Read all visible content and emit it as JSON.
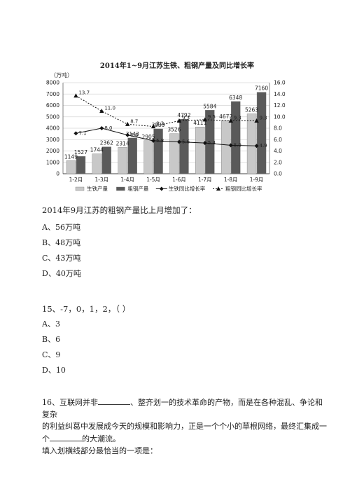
{
  "chart_data": {
    "type": "bar+line",
    "title": "2014年1~9月江苏生铁、粗钢产量及同比增长率",
    "left_axis_unit": "（万吨）",
    "categories": [
      "1-2月",
      "1-3月",
      "1-4月",
      "1-5月",
      "1-6月",
      "1-7月",
      "1-8月",
      "1-9月"
    ],
    "left_ylim": [
      0,
      8000
    ],
    "left_ticks": [
      "0",
      "1000",
      "2000",
      "3000",
      "4000",
      "5000",
      "6000",
      "7000",
      "8000"
    ],
    "right_ylim": [
      0,
      16.0
    ],
    "right_ticks": [
      "0.0",
      "2.0",
      "4.0",
      "6.0",
      "8.0",
      "10.0",
      "12.0",
      "14.0",
      "16.0"
    ],
    "series": [
      {
        "name": "生铁产量",
        "kind": "bar",
        "color": "#c8c8c8",
        "values": [
          1149,
          1744,
          2314,
          2905,
          3526,
          4111,
          4672,
          5263
        ]
      },
      {
        "name": "粗钢产量",
        "kind": "bar",
        "color": "#5a5a5a",
        "values": [
          1527,
          2362,
          3143,
          3939,
          4792,
          5584,
          6348,
          7160
        ]
      },
      {
        "name": "生铁同比增长率",
        "kind": "line",
        "axis": "right",
        "marker": "diamond",
        "values": [
          7.1,
          8.0,
          6.8,
          5.8,
          5.6,
          5.4,
          5.0,
          4.9
        ]
      },
      {
        "name": "粗钢同比增长率",
        "kind": "line",
        "axis": "right",
        "marker": "triangle",
        "dashed": true,
        "values": [
          13.7,
          11.0,
          8.7,
          8.3,
          9.3,
          9.5,
          9.3,
          9.3
        ]
      }
    ],
    "grid": true,
    "legend": "bottom"
  },
  "q14": {
    "stem": "2014年9月江苏的粗钢产量比上月增加了：",
    "options": [
      "A、56万吨",
      "B、48万吨",
      "C、43万吨",
      "D、40万吨"
    ]
  },
  "q15": {
    "stem": "15、-7，0，1，2，（    ）",
    "options": [
      "A、3",
      "B、6",
      "C、9",
      "D、10"
    ]
  },
  "q16": {
    "line1a": "16、互联网并非",
    "line1b": "、整齐划一的技术革命的产物，而是在各种混乱、争论和复杂",
    "line2": "的利益纠葛中发展成今天的规模和影响力，正是一个个小的草根网络，最终汇集成一",
    "line3a": "个",
    "line3b": "的大潮流。",
    "line4": "填入划横线部分最恰当的一项是："
  }
}
